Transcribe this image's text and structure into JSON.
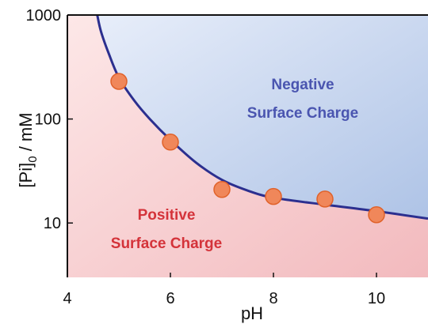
{
  "chart_data": {
    "type": "scatter",
    "xlabel": "pH",
    "ylabel_main": "[Pi]",
    "ylabel_sub": "0",
    "ylabel_unit": " / mM",
    "xlim": [
      4,
      11
    ],
    "ylim": [
      3,
      1000
    ],
    "yscale": "log",
    "x_ticks": [
      4,
      6,
      8,
      10
    ],
    "y_ticks": [
      10,
      100,
      1000
    ],
    "y_tick_labels": [
      "10",
      "100",
      "1000"
    ],
    "grid": false,
    "series": [
      {
        "marker": "circle",
        "color": "#f0875a",
        "points": [
          {
            "x": 5,
            "y": 230
          },
          {
            "x": 6,
            "y": 60
          },
          {
            "x": 7,
            "y": 21
          },
          {
            "x": 8,
            "y": 18
          },
          {
            "x": 9,
            "y": 17
          },
          {
            "x": 10,
            "y": 12
          }
        ]
      }
    ],
    "boundary_curve": {
      "color": "#2b2f8f",
      "points": [
        {
          "x": 4.58,
          "y": 1000
        },
        {
          "x": 4.65,
          "y": 700
        },
        {
          "x": 4.8,
          "y": 430
        },
        {
          "x": 5.0,
          "y": 250
        },
        {
          "x": 5.3,
          "y": 150
        },
        {
          "x": 5.6,
          "y": 100
        },
        {
          "x": 6.0,
          "y": 63
        },
        {
          "x": 6.5,
          "y": 38
        },
        {
          "x": 7.0,
          "y": 26
        },
        {
          "x": 7.5,
          "y": 20.5
        },
        {
          "x": 8.0,
          "y": 17.5
        },
        {
          "x": 9.0,
          "y": 15
        },
        {
          "x": 10.0,
          "y": 13
        },
        {
          "x": 11.0,
          "y": 11
        }
      ]
    },
    "regions": [
      {
        "lines": [
          "Negative",
          "Surface Charge"
        ],
        "color": "#4a55b0",
        "fill_start": "#e8eefa",
        "fill_end": "#aec3e6"
      },
      {
        "lines": [
          "Positive",
          "Surface Charge"
        ],
        "color": "#d4333a",
        "fill_start": "#fde8e8",
        "fill_end": "#f2b9bd"
      }
    ]
  }
}
